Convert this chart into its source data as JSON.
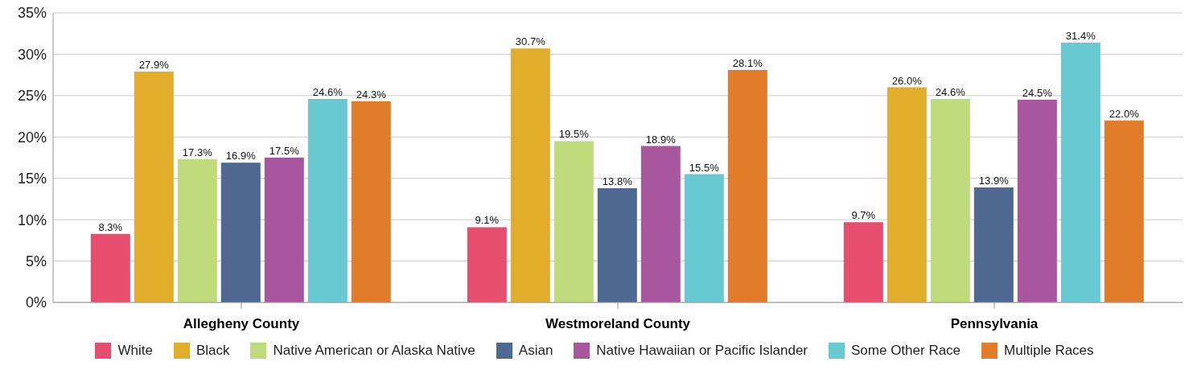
{
  "chart_data": {
    "type": "bar",
    "categories": [
      "Allegheny County",
      "Westmoreland County",
      "Pennsylvania"
    ],
    "series": [
      {
        "name": "White",
        "color": "#e64d6e",
        "values": [
          8.3,
          9.1,
          9.7
        ],
        "value_labels": [
          "8.3%",
          "9.1%",
          "9.7%"
        ]
      },
      {
        "name": "Black",
        "color": "#e1ad2a",
        "values": [
          27.9,
          30.7,
          26.0
        ],
        "value_labels": [
          "27.9%",
          "30.7%",
          "26.0%"
        ]
      },
      {
        "name": "Native American or Alaska Native",
        "color": "#bfdb7c",
        "values": [
          17.3,
          19.5,
          24.6
        ],
        "value_labels": [
          "17.3%",
          "19.5%",
          "24.6%"
        ]
      },
      {
        "name": "Asian",
        "color": "#4d6891",
        "values": [
          16.9,
          13.8,
          13.9
        ],
        "value_labels": [
          "16.9%",
          "13.8%",
          "13.9%"
        ]
      },
      {
        "name": "Native Hawaiian or Pacific Islander",
        "color": "#a8579f",
        "values": [
          17.5,
          18.9,
          24.5
        ],
        "value_labels": [
          "17.5%",
          "18.9%",
          "24.5%"
        ]
      },
      {
        "name": "Some Other Race",
        "color": "#67c9d2",
        "values": [
          24.6,
          15.5,
          31.4
        ],
        "value_labels": [
          "24.6%",
          "15.5%",
          "31.4%"
        ]
      },
      {
        "name": "Multiple Races",
        "color": "#e17c28",
        "values": [
          24.3,
          28.1,
          22.0
        ],
        "value_labels": [
          "24.3%",
          "28.1%",
          "22.0%"
        ]
      }
    ],
    "ylim": [
      0,
      35
    ],
    "yticks": [
      {
        "value": 0,
        "label": "0%"
      },
      {
        "value": 5,
        "label": "5%"
      },
      {
        "value": 10,
        "label": "10%"
      },
      {
        "value": 15,
        "label": "15%"
      },
      {
        "value": 20,
        "label": "20%"
      },
      {
        "value": 25,
        "label": "25%"
      },
      {
        "value": 30,
        "label": "30%"
      },
      {
        "value": 35,
        "label": "35%"
      }
    ],
    "grid": "y",
    "legend": "bottom"
  }
}
